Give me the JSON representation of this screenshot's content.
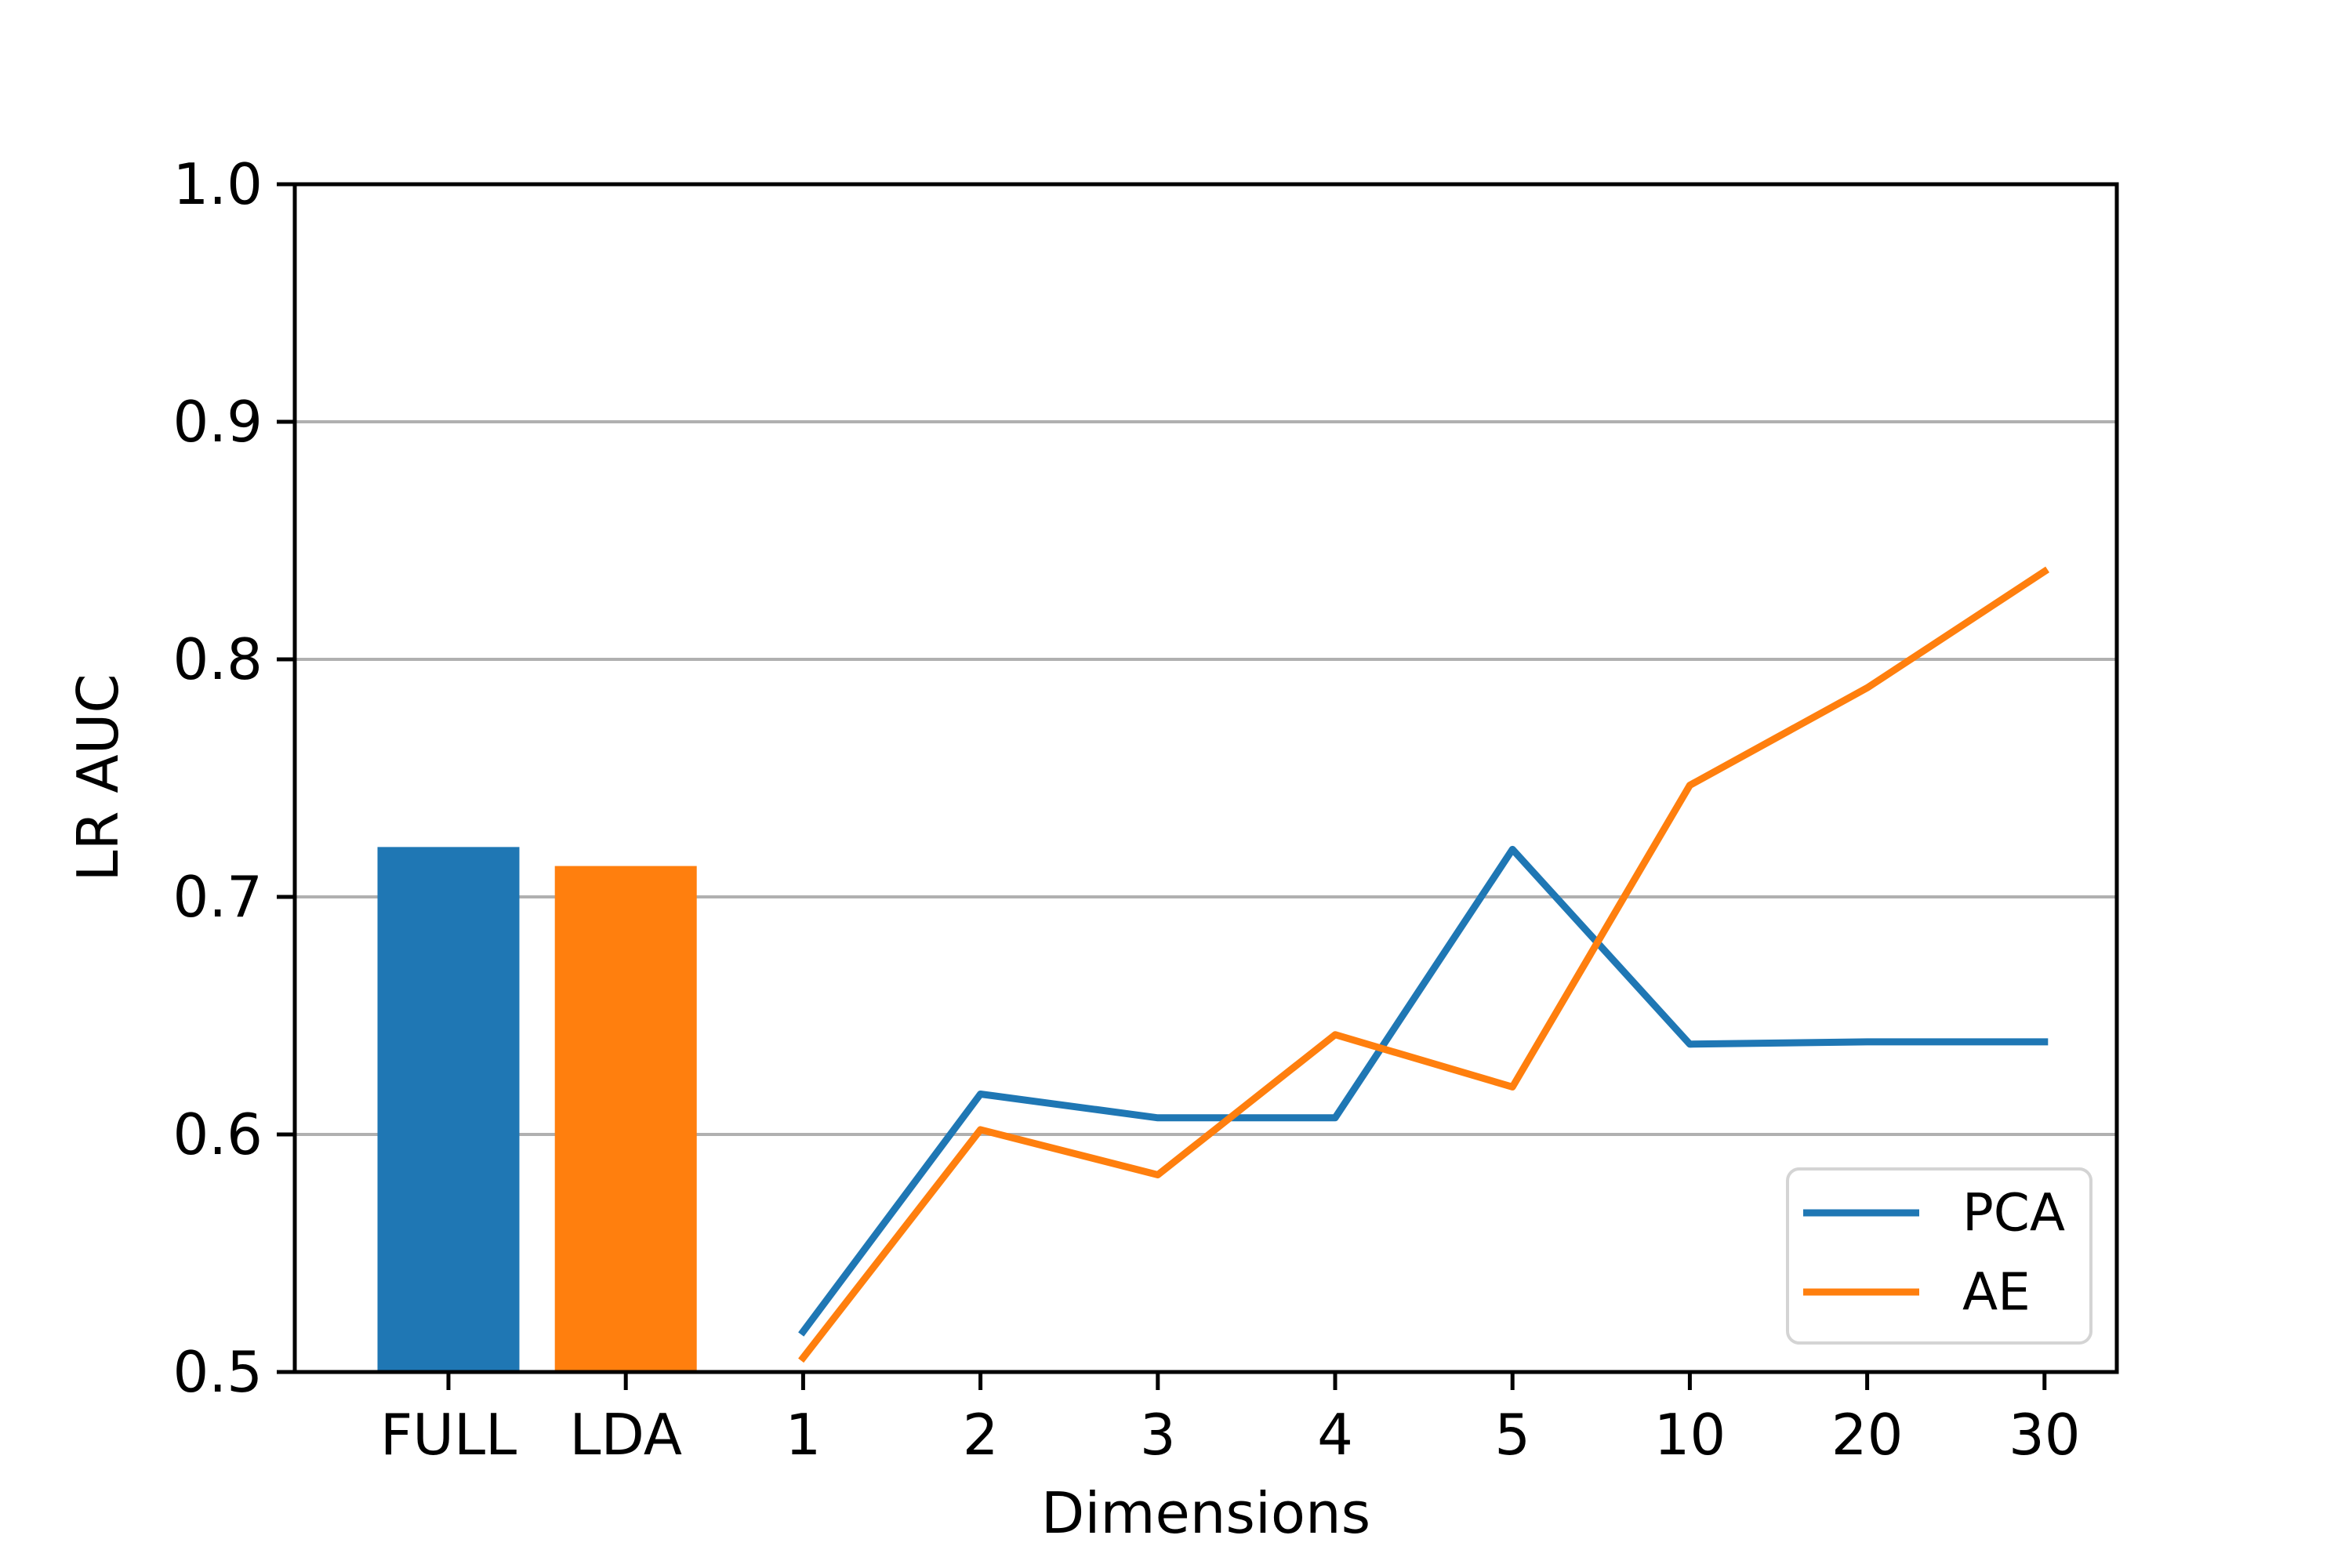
{
  "chart_data": {
    "type": "bar+line",
    "title": "",
    "xlabel": "Dimensions",
    "ylabel": "LR AUC",
    "ylim": [
      0.5,
      1.0
    ],
    "yticks": [
      0.5,
      0.6,
      0.7,
      0.8,
      0.9,
      1.0
    ],
    "ytick_labels": [
      "0.5",
      "0.6",
      "0.7",
      "0.8",
      "0.9",
      "1.0"
    ],
    "categories": [
      "FULL",
      "LDA",
      "1",
      "2",
      "3",
      "4",
      "5",
      "10",
      "20",
      "30"
    ],
    "bars": [
      {
        "category": "FULL",
        "value": 0.721,
        "color": "#1f77b4"
      },
      {
        "category": "LDA",
        "value": 0.713,
        "color": "#ff7f0e"
      }
    ],
    "series": [
      {
        "name": "PCA",
        "color": "#1f77b4",
        "x": [
          "1",
          "2",
          "3",
          "4",
          "5",
          "10",
          "20",
          "30"
        ],
        "values": [
          0.517,
          0.617,
          0.607,
          0.607,
          0.72,
          0.638,
          0.639,
          0.639
        ]
      },
      {
        "name": "AE",
        "color": "#ff7f0e",
        "x": [
          "1",
          "2",
          "3",
          "4",
          "5",
          "10",
          "20",
          "30"
        ],
        "values": [
          0.506,
          0.602,
          0.583,
          0.642,
          0.62,
          0.747,
          0.788,
          0.837
        ]
      }
    ],
    "legend": {
      "position": "lower right",
      "entries": [
        "PCA",
        "AE"
      ]
    },
    "grid": true,
    "colors": {
      "grid": "#b0b0b0",
      "axis": "#000000",
      "legend_border": "#d4d4d4",
      "background": "#ffffff"
    }
  }
}
